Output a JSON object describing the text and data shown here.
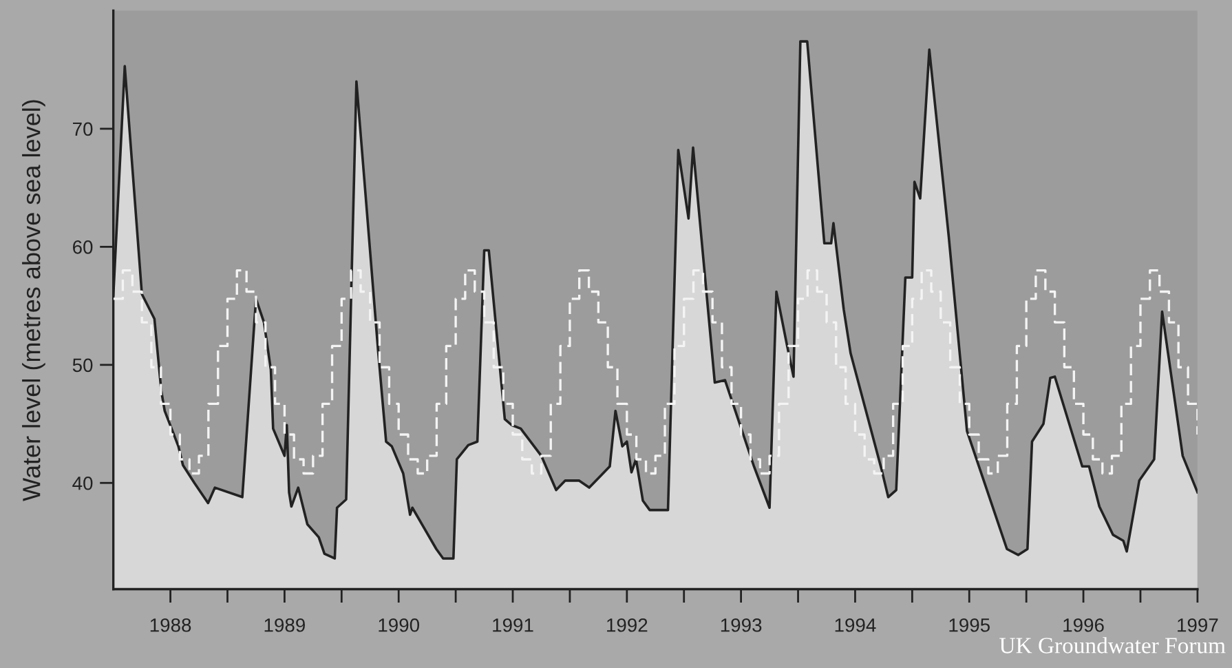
{
  "chart_data": {
    "type": "area",
    "ylabel": "Water level (metres above sea level)",
    "xlim": [
      1987.5,
      1997.0
    ],
    "ylim": [
      31,
      80
    ],
    "yticks": [
      40,
      50,
      60,
      70
    ],
    "xticks": [
      {
        "value": 1988,
        "label": "1988"
      },
      {
        "value": 1988.5,
        "label": null
      },
      {
        "value": 1989,
        "label": "1989"
      },
      {
        "value": 1989.5,
        "label": null
      },
      {
        "value": 1990,
        "label": "1990"
      },
      {
        "value": 1990.5,
        "label": null
      },
      {
        "value": 1991,
        "label": "1991"
      },
      {
        "value": 1991.5,
        "label": null
      },
      {
        "value": 1992,
        "label": "1992"
      },
      {
        "value": 1992.5,
        "label": null
      },
      {
        "value": 1993,
        "label": "1993"
      },
      {
        "value": 1993.5,
        "label": null
      },
      {
        "value": 1994,
        "label": "1994"
      },
      {
        "value": 1994.5,
        "label": null
      },
      {
        "value": 1995,
        "label": "1995"
      },
      {
        "value": 1995.5,
        "label": null
      },
      {
        "value": 1996,
        "label": "1996"
      },
      {
        "value": 1996.5,
        "label": null
      },
      {
        "value": 1997,
        "label": "1997"
      }
    ],
    "grid": false,
    "annotations": [
      "UK Groundwater Forum"
    ],
    "series": [
      {
        "color": "#222222",
        "x": [
          1987.5,
          1987.6,
          1987.75,
          1987.86,
          1987.92,
          1987.95,
          1988.07,
          1988.11,
          1988.21,
          1988.33,
          1988.39,
          1988.63,
          1988.75,
          1988.82,
          1988.88,
          1988.9,
          1989.0,
          1989.02,
          1989.04,
          1989.06,
          1989.12,
          1989.2,
          1989.3,
          1989.35,
          1989.44,
          1989.46,
          1989.54,
          1989.63,
          1989.82,
          1989.89,
          1989.94,
          1990.04,
          1990.1,
          1990.12,
          1990.33,
          1990.39,
          1990.48,
          1990.51,
          1990.61,
          1990.69,
          1990.75,
          1990.79,
          1990.93,
          1990.99,
          1991.07,
          1991.25,
          1991.38,
          1991.46,
          1991.58,
          1991.67,
          1991.85,
          1991.9,
          1991.96,
          1992.0,
          1992.04,
          1992.08,
          1992.14,
          1992.2,
          1992.36,
          1992.45,
          1992.54,
          1992.58,
          1992.77,
          1992.86,
          1993.11,
          1993.25,
          1993.31,
          1993.4,
          1993.46,
          1993.52,
          1993.58,
          1993.73,
          1993.79,
          1993.81,
          1993.9,
          1993.96,
          1994.23,
          1994.29,
          1994.36,
          1994.44,
          1994.5,
          1994.52,
          1994.57,
          1994.65,
          1994.82,
          1994.98,
          1995.33,
          1995.43,
          1995.51,
          1995.55,
          1995.65,
          1995.71,
          1995.75,
          1995.99,
          1996.05,
          1996.14,
          1996.26,
          1996.35,
          1996.38,
          1996.49,
          1996.62,
          1996.69,
          1996.87,
          1997.0
        ],
        "values": [
          55.9,
          75.3,
          56.0,
          53.9,
          47.8,
          46.1,
          43.1,
          41.5,
          40.0,
          38.3,
          39.6,
          38.8,
          55.6,
          53.6,
          49.6,
          44.6,
          42.3,
          44.9,
          39.2,
          38.0,
          39.6,
          36.5,
          35.4,
          34.0,
          33.6,
          37.9,
          38.6,
          74.0,
          51.2,
          43.5,
          43.1,
          40.8,
          37.3,
          37.9,
          34.4,
          33.6,
          33.6,
          42.0,
          43.2,
          43.5,
          59.7,
          59.7,
          45.4,
          44.9,
          44.6,
          42.3,
          39.4,
          40.2,
          40.2,
          39.6,
          41.4,
          46.1,
          43.1,
          43.5,
          40.9,
          42.0,
          38.5,
          37.7,
          37.7,
          68.2,
          62.4,
          68.4,
          48.5,
          48.7,
          41.5,
          37.9,
          56.2,
          51.8,
          49.0,
          77.4,
          77.4,
          60.3,
          60.3,
          62.0,
          54.7,
          51.0,
          41.2,
          38.8,
          39.4,
          57.4,
          57.4,
          65.5,
          64.1,
          76.7,
          60.9,
          44.4,
          34.4,
          33.9,
          34.4,
          43.5,
          45.0,
          48.9,
          49.0,
          41.4,
          41.4,
          38.0,
          35.6,
          35.1,
          34.2,
          40.2,
          42.0,
          54.5,
          42.3,
          39.2
        ]
      },
      {
        "type": "step",
        "color": "#f4f4f4",
        "line_style": "dashed",
        "x": [
          1987.5,
          1987.583,
          1987.667,
          1987.75,
          1987.833,
          1987.917,
          1988.0,
          1988.083,
          1988.167,
          1988.25,
          1988.333,
          1988.417,
          1988.5,
          1988.583,
          1988.667,
          1988.75,
          1988.833,
          1988.917,
          1989.0,
          1989.083,
          1989.167,
          1989.25,
          1989.333,
          1989.417,
          1989.5,
          1989.583,
          1989.667,
          1989.75,
          1989.833,
          1989.917,
          1990.0,
          1990.083,
          1990.167,
          1990.25,
          1990.333,
          1990.417,
          1990.5,
          1990.583,
          1990.667,
          1990.75,
          1990.833,
          1990.917,
          1991.0,
          1991.083,
          1991.167,
          1991.25,
          1991.333,
          1991.417,
          1991.5,
          1991.583,
          1991.667,
          1991.75,
          1991.833,
          1991.917,
          1992.0,
          1992.083,
          1992.167,
          1992.25,
          1992.333,
          1992.417,
          1992.5,
          1992.583,
          1992.667,
          1992.75,
          1992.833,
          1992.917,
          1993.0,
          1993.083,
          1993.167,
          1993.25,
          1993.333,
          1993.417,
          1993.5,
          1993.583,
          1993.667,
          1993.75,
          1993.833,
          1993.917,
          1994.0,
          1994.083,
          1994.167,
          1994.25,
          1994.333,
          1994.417,
          1994.5,
          1994.583,
          1994.667,
          1994.75,
          1994.833,
          1994.917,
          1995.0,
          1995.083,
          1995.167,
          1995.25,
          1995.333,
          1995.417,
          1995.5,
          1995.583,
          1995.667,
          1995.75,
          1995.833,
          1995.917,
          1996.0,
          1996.083,
          1996.167,
          1996.25,
          1996.333,
          1996.417,
          1996.5,
          1996.583,
          1996.667,
          1996.75,
          1996.833,
          1996.917,
          1997.0
        ],
        "values": [
          55.6,
          58.0,
          56.2,
          53.6,
          49.8,
          46.7,
          44.1,
          42.0,
          40.8,
          42.3,
          46.7,
          51.6,
          55.6,
          58.0,
          56.2,
          53.6,
          49.8,
          46.7,
          44.1,
          42.0,
          40.8,
          42.3,
          46.7,
          51.6,
          55.6,
          58.0,
          56.2,
          53.6,
          49.8,
          46.7,
          44.1,
          42.0,
          40.8,
          42.3,
          46.7,
          51.6,
          55.6,
          58.0,
          56.2,
          53.6,
          49.8,
          46.7,
          44.1,
          42.0,
          40.8,
          42.3,
          46.7,
          51.6,
          55.6,
          58.0,
          56.2,
          53.6,
          49.8,
          46.7,
          44.1,
          42.0,
          40.8,
          42.3,
          46.7,
          51.6,
          55.6,
          58.0,
          56.2,
          53.6,
          49.8,
          46.7,
          44.1,
          42.0,
          40.8,
          42.3,
          46.7,
          51.6,
          55.6,
          58.0,
          56.2,
          53.6,
          49.8,
          46.7,
          44.1,
          42.0,
          40.8,
          42.3,
          46.7,
          51.6,
          55.6,
          58.0,
          56.2,
          53.6,
          49.8,
          46.7,
          44.1,
          42.0,
          40.8,
          42.3,
          46.7,
          51.6,
          55.6,
          58.0,
          56.2,
          53.6,
          49.8,
          46.7,
          44.1,
          42.0,
          40.8,
          42.3,
          46.7,
          51.6,
          55.6,
          58.0,
          56.2,
          53.6,
          49.8,
          46.7,
          44.1
        ]
      }
    ]
  }
}
